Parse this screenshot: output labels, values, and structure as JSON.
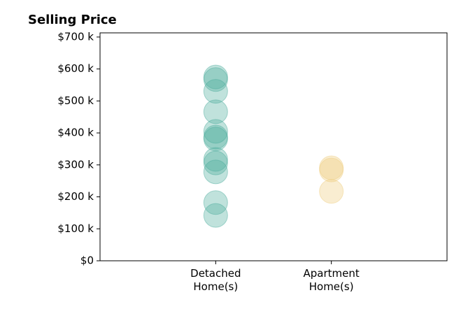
{
  "chart_data": {
    "type": "scatter",
    "title": "Selling Price",
    "xlim": [
      0,
      3
    ],
    "xticks": [
      {
        "value": 1,
        "label": "Detached Home(s)"
      },
      {
        "value": 2,
        "label": "Apartment Home(s)"
      }
    ],
    "ylim": [
      0,
      713
    ],
    "yticks": [
      {
        "value": 0,
        "label": "$0"
      },
      {
        "value": 100,
        "label": "$100 k"
      },
      {
        "value": 200,
        "label": "$200 k"
      },
      {
        "value": 300,
        "label": "$300 k"
      },
      {
        "value": 400,
        "label": "$400 k"
      },
      {
        "value": 500,
        "label": "$500 k"
      },
      {
        "value": 600,
        "label": "$600 k"
      },
      {
        "value": 700,
        "label": "$700 k"
      }
    ],
    "grid": false,
    "series": [
      {
        "color": "#4aab9c",
        "x": [
          1,
          1,
          1,
          1,
          1,
          1,
          1,
          1,
          1,
          1,
          1,
          1
        ],
        "values": [
          575,
          567,
          530,
          466,
          405,
          387,
          381,
          317,
          306,
          278,
          182,
          142
        ]
      },
      {
        "color": "#eecb7c",
        "x": [
          2,
          2,
          2
        ],
        "values": [
          291,
          284,
          217
        ]
      }
    ]
  }
}
